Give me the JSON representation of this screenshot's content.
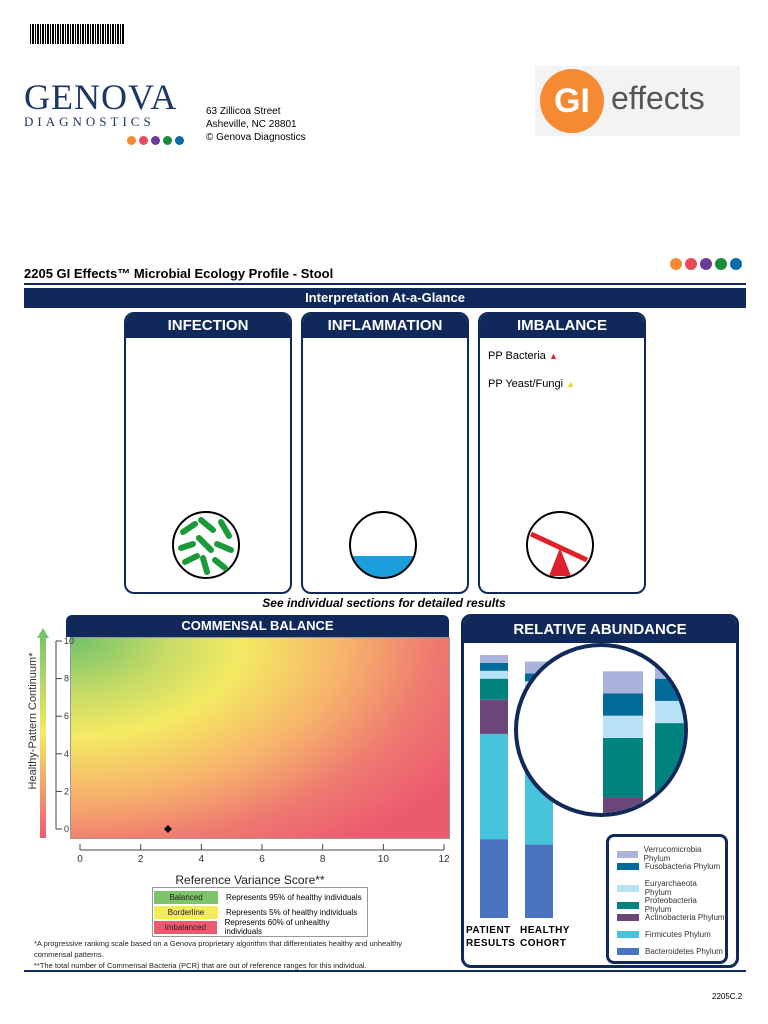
{
  "header": {
    "logo_text": "GENOVA",
    "logo_sub": "DIAGNOSTICS",
    "address": [
      "63 Zillicoa Street",
      "Asheville, NC  28801",
      "© Genova Diagnostics"
    ],
    "product_logo": "GI effects",
    "report_title": "2205 GI Effects™ Microbial Ecology Profile - Stool",
    "brand_dots": [
      "#f58a32",
      "#e94b5d",
      "#6a3c98",
      "#1a8b3a",
      "#0a6aa8"
    ]
  },
  "glance": {
    "title": "Interpretation At-a-Glance",
    "infection": {
      "title": "INFECTION",
      "icon": "bacteria-icon"
    },
    "inflammation": {
      "title": "INFLAMMATION",
      "icon": "fluid-level-icon"
    },
    "imbalance": {
      "title": "IMBALANCE",
      "icon": "seesaw-icon",
      "items": [
        {
          "label": "PP Bacteria",
          "flag": "red-triangle",
          "color": "#e0202a"
        },
        {
          "label": "PP Yeast/Fungi",
          "flag": "yellow-triangle",
          "color": "#f2d21b"
        }
      ]
    },
    "note": "See individual sections for detailed results"
  },
  "chart_data": [
    {
      "type": "scatter",
      "title": "COMMENSAL BALANCE",
      "xlabel": "Reference Variance Score**",
      "ylabel": "Healthy-Pattern Continuum*",
      "xlim": [
        0,
        12
      ],
      "ylim": [
        0,
        10
      ],
      "xticks": [
        0,
        2,
        4,
        6,
        8,
        10,
        12
      ],
      "yticks": [
        0,
        2,
        4,
        6,
        8,
        10
      ],
      "points": [
        {
          "x": 2.9,
          "y": 0
        }
      ],
      "background": "gradient green (top-left) to yellow to red",
      "legend": [
        {
          "label": "Balanced",
          "desc": "Represents 95% of healthy individuals",
          "color": "#7cc36a"
        },
        {
          "label": "Borderline",
          "desc": "Represents 5% of healthy individuals",
          "color": "#f5ec5b"
        },
        {
          "label": "Imbalanced",
          "desc": "Represents 60% of unhealthy individuals",
          "color": "#ec5a70"
        }
      ]
    },
    {
      "type": "bar",
      "stacked": true,
      "title": "RELATIVE ABUNDANCE",
      "categories": [
        "PATIENT RESULTS",
        "HEALTHY COHORT"
      ],
      "series": [
        {
          "name": "Bacteroidetes Phylum",
          "color": "#4a74bf",
          "values": [
            30,
            28
          ]
        },
        {
          "name": "Firmicutes Phylum",
          "color": "#47c3dc",
          "values": [
            40,
            36
          ]
        },
        {
          "name": "Actinobacteria Phylum",
          "color": "#6b4779",
          "values": [
            13,
            13
          ]
        },
        {
          "name": "Proteobacteria Phylum",
          "color": "#00827f",
          "values": [
            8,
            10
          ]
        },
        {
          "name": "Euryarchaeota Phylum",
          "color": "#b8e2f5",
          "values": [
            3,
            3
          ]
        },
        {
          "name": "Fusobacteria Phylum",
          "color": "#006b98",
          "values": [
            3,
            3
          ]
        },
        {
          "name": "Verrucomicrobia Phylum",
          "color": "#a9b3dc",
          "values": [
            3,
            4.5
          ]
        }
      ]
    }
  ],
  "footnotes": [
    "*A progressive ranking scale based on a Genova proprietary algorithm that differentiates healthy and unhealthy commensal patterns.",
    "**The total number of Commensal Bacteria (PCR) that are out of reference ranges for this individual."
  ],
  "footer_code": "2205C.2"
}
